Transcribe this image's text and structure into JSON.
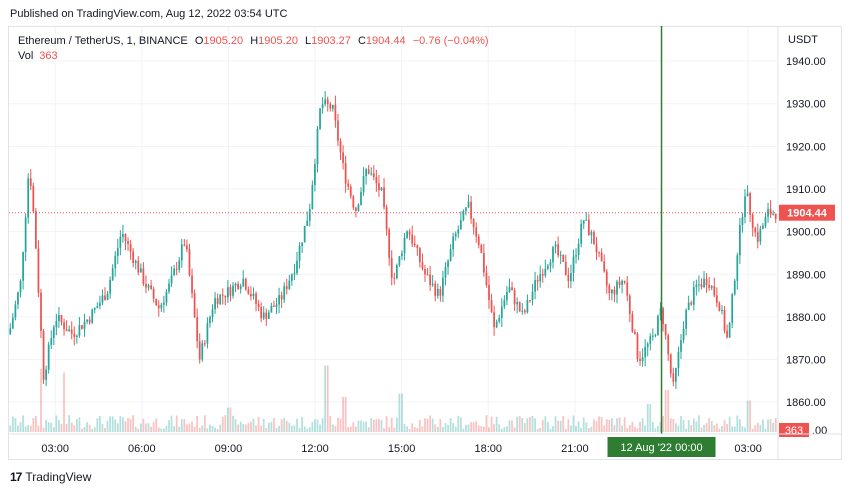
{
  "header": {
    "published": "Published on TradingView.com, Aug 12, 2022 03:54 UTC"
  },
  "legend": {
    "symbol": "Ethereum / TetherUS, 1, BINANCE",
    "o_label": "O",
    "o_value": "1905.20",
    "h_label": "H",
    "h_value": "1905.20",
    "l_label": "L",
    "l_value": "1903.27",
    "c_label": "C",
    "c_value": "1904.44",
    "change": "−0.76 (−0.04%)",
    "vol_label": "Vol",
    "vol_value": "363"
  },
  "footer": {
    "brand": "TradingView"
  },
  "colors": {
    "up": "#26a69a",
    "down": "#ef5350",
    "cursor": "#2e7d32",
    "grid": "#f0f3fa",
    "axis_text": "#131722"
  },
  "chart_data": {
    "type": "candlestick",
    "title": "Ethereum / TetherUS, 1, BINANCE",
    "currency": "USDT",
    "ylim": [
      1853,
      1948
    ],
    "y_ticks": [
      "1940.00",
      "1930.00",
      "1920.00",
      "1910.00",
      "1900.00",
      "1890.00",
      "1880.00",
      "1870.00",
      "1860.00"
    ],
    "y_tick_values": [
      1940,
      1930,
      1920,
      1910,
      1900,
      1890,
      1880,
      1870,
      1860
    ],
    "x_ticks": [
      "03:00",
      "06:00",
      "09:00",
      "12:00",
      "15:00",
      "18:00",
      "21:00",
      "03:00"
    ],
    "x_tick_hours": [
      3,
      6,
      9,
      12,
      15,
      18,
      21,
      27
    ],
    "x_range_hours": [
      1.4,
      28.0
    ],
    "last_price": "1904.44",
    "last_price_value": 1904.44,
    "last_volume": "363",
    "volume_axis_label": ".00",
    "cursor_label": "12 Aug '22   00:00",
    "cursor_hour": 24.0,
    "price_path": [
      [
        1.4,
        1876
      ],
      [
        1.8,
        1888
      ],
      [
        2.1,
        1916
      ],
      [
        2.3,
        1900
      ],
      [
        2.6,
        1866
      ],
      [
        3.0,
        1880
      ],
      [
        3.6,
        1876
      ],
      [
        4.2,
        1880
      ],
      [
        4.8,
        1886
      ],
      [
        5.3,
        1900
      ],
      [
        5.7,
        1894
      ],
      [
        6.1,
        1888
      ],
      [
        6.6,
        1882
      ],
      [
        7.0,
        1888
      ],
      [
        7.5,
        1898
      ],
      [
        8.0,
        1870
      ],
      [
        8.5,
        1884
      ],
      [
        9.0,
        1886
      ],
      [
        9.5,
        1889
      ],
      [
        10.2,
        1880
      ],
      [
        10.8,
        1884
      ],
      [
        11.3,
        1892
      ],
      [
        11.8,
        1905
      ],
      [
        12.2,
        1930
      ],
      [
        12.6,
        1929
      ],
      [
        13.0,
        1914
      ],
      [
        13.4,
        1905
      ],
      [
        13.8,
        1915
      ],
      [
        14.3,
        1909
      ],
      [
        14.7,
        1888
      ],
      [
        15.2,
        1901
      ],
      [
        15.8,
        1890
      ],
      [
        16.3,
        1885
      ],
      [
        16.8,
        1898
      ],
      [
        17.3,
        1906
      ],
      [
        17.7,
        1897
      ],
      [
        18.2,
        1877
      ],
      [
        18.7,
        1887
      ],
      [
        19.2,
        1880
      ],
      [
        19.7,
        1889
      ],
      [
        20.3,
        1896
      ],
      [
        20.8,
        1889
      ],
      [
        21.3,
        1903
      ],
      [
        21.7,
        1897
      ],
      [
        22.2,
        1885
      ],
      [
        22.7,
        1889
      ],
      [
        23.2,
        1870
      ],
      [
        23.7,
        1875
      ],
      [
        24.0,
        1882
      ],
      [
        24.4,
        1863
      ],
      [
        24.8,
        1880
      ],
      [
        25.2,
        1887
      ],
      [
        25.6,
        1889
      ],
      [
        26.0,
        1883
      ],
      [
        26.3,
        1874
      ],
      [
        26.6,
        1894
      ],
      [
        26.9,
        1910
      ],
      [
        27.3,
        1898
      ],
      [
        27.7,
        1904.44
      ]
    ],
    "volume_spikes": [
      [
        2.5,
        0.9
      ],
      [
        3.3,
        0.85
      ],
      [
        9.0,
        0.35
      ],
      [
        12.4,
        0.95
      ],
      [
        13.0,
        0.5
      ],
      [
        15.0,
        0.55
      ],
      [
        23.6,
        0.4
      ],
      [
        24.2,
        0.6
      ],
      [
        27.0,
        0.45
      ]
    ]
  }
}
